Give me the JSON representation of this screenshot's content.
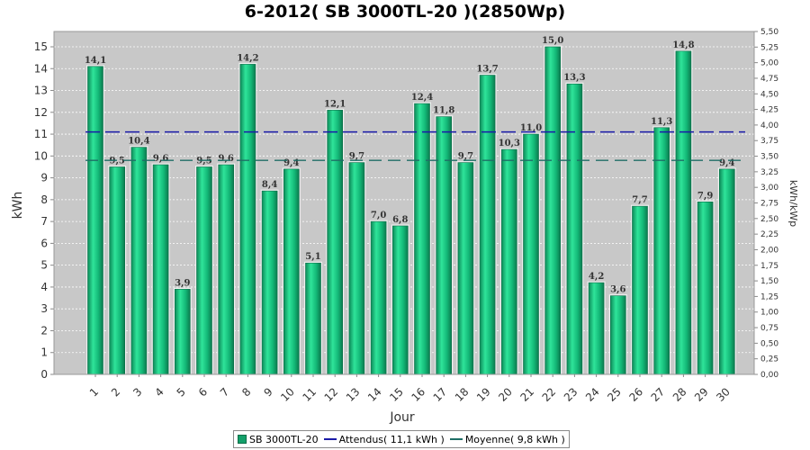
{
  "chart_data": {
    "type": "bar",
    "title": "6-2012( SB 3000TL-20 )(2850Wp)",
    "xlabel": "Jour",
    "ylabel": "kWh",
    "y2label": "kWh/kWp",
    "ylim": [
      0,
      15.7
    ],
    "y2lim": [
      0,
      5.5
    ],
    "categories": [
      "1",
      "2",
      "3",
      "4",
      "5",
      "6",
      "7",
      "8",
      "9",
      "10",
      "11",
      "12",
      "13",
      "14",
      "15",
      "16",
      "17",
      "18",
      "19",
      "20",
      "21",
      "22",
      "23",
      "24",
      "25",
      "26",
      "27",
      "28",
      "29",
      "30"
    ],
    "series": [
      {
        "name": "SB 3000TL-20",
        "values": [
          14.1,
          9.5,
          10.4,
          9.6,
          3.9,
          9.5,
          9.6,
          14.2,
          8.4,
          9.4,
          5.1,
          12.1,
          9.7,
          7.0,
          6.8,
          12.4,
          11.8,
          9.7,
          13.7,
          10.3,
          11.0,
          15.0,
          13.3,
          4.2,
          3.6,
          7.7,
          11.3,
          14.8,
          7.9,
          9.4
        ],
        "labels": [
          "14,1",
          "9,5",
          "10,4",
          "9,6",
          "3,9",
          "9,5",
          "9,6",
          "14,2",
          "8,4",
          "9,4",
          "5,1",
          "12,1",
          "9,7",
          "7,0",
          "6,8",
          "12,4",
          "11,8",
          "9,7",
          "13,7",
          "10,3",
          "11,0",
          "15,0",
          "13,3",
          "4,2",
          "3,6",
          "7,7",
          "11,3",
          "14,8",
          "7,9",
          "9,4"
        ]
      }
    ],
    "reference_lines": [
      {
        "name": "Attendus( 11,1 kWh )",
        "value": 11.1,
        "color": "#1a1aa8"
      },
      {
        "name": "Moyenne( 9,8 kWh )",
        "value": 9.8,
        "color": "#1f6e66"
      }
    ],
    "y_ticks": [
      "0",
      "1",
      "2",
      "3",
      "4",
      "5",
      "6",
      "7",
      "8",
      "9",
      "10",
      "11",
      "12",
      "13",
      "14",
      "15"
    ],
    "y2_ticks": [
      "0,00",
      "0,25",
      "0,50",
      "0,75",
      "1,00",
      "1,25",
      "1,50",
      "1,75",
      "2,00",
      "2,25",
      "2,50",
      "2,75",
      "3,00",
      "3,25",
      "3,50",
      "3,75",
      "4,00",
      "4,25",
      "4,50",
      "4,75",
      "5,00",
      "5,25",
      "5,50"
    ],
    "grid": true,
    "legend_position": "bottom",
    "colors": {
      "bar": "#13a06a",
      "bar_highlight": "#2fe49a",
      "plot_bg": "#c8c8c8"
    }
  },
  "legend": {
    "bar": "SB 3000TL-20",
    "expected": "Attendus( 11,1 kWh )",
    "average": "Moyenne( 9,8 kWh )"
  }
}
